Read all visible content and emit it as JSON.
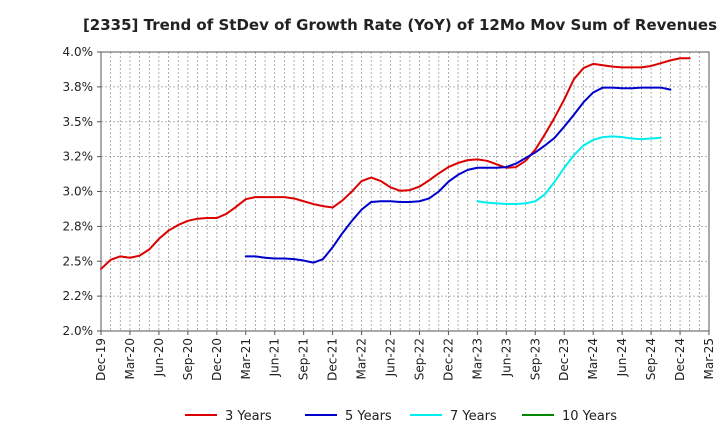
{
  "chart_data": {
    "type": "line",
    "title": "[2335]  Trend of StDev of Growth Rate (YoY) of 12Mo Mov Sum of Revenues",
    "xlabel": "",
    "ylabel": "",
    "ylim": [
      2.0,
      4.0
    ],
    "y_ticks": [
      "4.0%",
      "3.8%",
      "3.5%",
      "3.2%",
      "3.0%",
      "2.8%",
      "2.5%",
      "2.2%",
      "2.0%"
    ],
    "y_tick_values": [
      4.0,
      3.75,
      3.5,
      3.25,
      3.0,
      2.75,
      2.5,
      2.25,
      2.0
    ],
    "x_ticks": [
      "Dec-19",
      "Mar-20",
      "Jun-20",
      "Sep-20",
      "Dec-20",
      "Mar-21",
      "Jun-21",
      "Sep-21",
      "Dec-21",
      "Mar-22",
      "Jun-22",
      "Sep-22",
      "Dec-22",
      "Mar-23",
      "Jun-23",
      "Sep-23",
      "Dec-23",
      "Mar-24",
      "Jun-24",
      "Sep-24",
      "Dec-24",
      "Mar-25"
    ],
    "grid": true,
    "legend_position": "bottom",
    "series": [
      {
        "name": "3 Years",
        "color": "#dd0000",
        "start_index": 0,
        "values": [
          2.445,
          2.51,
          2.535,
          2.525,
          2.54,
          2.585,
          2.66,
          2.72,
          2.76,
          2.79,
          2.805,
          2.81,
          2.81,
          2.84,
          2.89,
          2.945,
          2.96,
          2.96,
          2.96,
          2.96,
          2.95,
          2.93,
          2.91,
          2.895,
          2.885,
          2.935,
          3.0,
          3.075,
          3.1,
          3.075,
          3.03,
          3.005,
          3.01,
          3.035,
          3.08,
          3.13,
          3.175,
          3.205,
          3.225,
          3.23,
          3.22,
          3.195,
          3.17,
          3.175,
          3.22,
          3.3,
          3.41,
          3.53,
          3.66,
          3.805,
          3.885,
          3.915,
          3.905,
          3.895,
          3.89,
          3.89,
          3.89,
          3.9,
          3.92,
          3.94,
          3.955,
          3.955
        ]
      },
      {
        "name": "5 Years",
        "color": "#0000cc",
        "start_index": 15,
        "values": [
          2.535,
          2.535,
          2.525,
          2.52,
          2.52,
          2.515,
          2.505,
          2.49,
          2.515,
          2.6,
          2.7,
          2.79,
          2.87,
          2.925,
          2.93,
          2.93,
          2.925,
          2.925,
          2.93,
          2.95,
          3.0,
          3.07,
          3.12,
          3.155,
          3.17,
          3.17,
          3.17,
          3.175,
          3.2,
          3.24,
          3.28,
          3.33,
          3.385,
          3.465,
          3.55,
          3.64,
          3.71,
          3.745,
          3.745,
          3.74,
          3.74,
          3.745,
          3.745,
          3.745,
          3.73
        ]
      },
      {
        "name": "7 Years",
        "color": "#00eeee",
        "start_index": 39,
        "values": [
          2.93,
          2.92,
          2.915,
          2.91,
          2.91,
          2.915,
          2.93,
          2.98,
          3.07,
          3.17,
          3.26,
          3.33,
          3.37,
          3.39,
          3.395,
          3.39,
          3.38,
          3.375,
          3.38,
          3.385
        ]
      },
      {
        "name": "10 Years",
        "color": "#008800",
        "start_index": 0,
        "values": []
      }
    ]
  }
}
